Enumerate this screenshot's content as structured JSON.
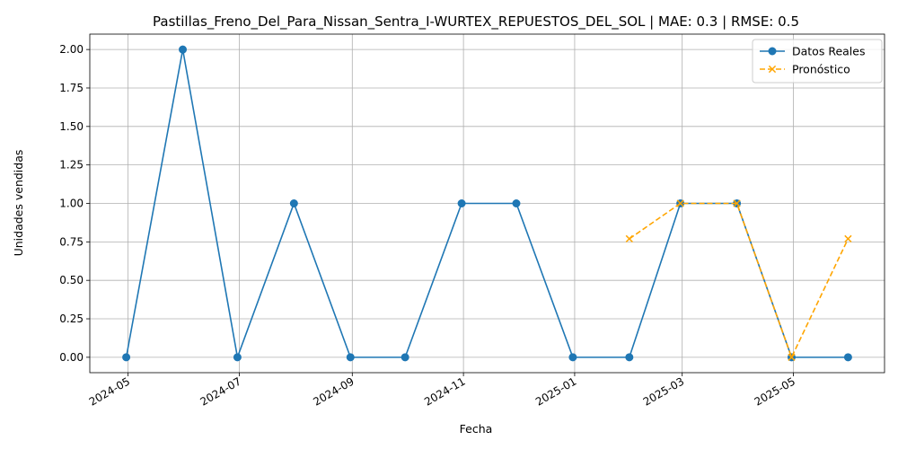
{
  "chart_data": {
    "type": "line",
    "title": "Pastillas_Freno_Del_Para_Nissan_Sentra_I-WURTEX_REPUESTOS_DEL_SOL | MAE: 0.3 | RMSE: 0.5",
    "xlabel": "Fecha",
    "ylabel": "Unidades vendidas",
    "grid": true,
    "legend_position": "top-right",
    "x_range": [
      "2024-04-10",
      "2025-06-20"
    ],
    "ylim": [
      -0.1,
      2.1
    ],
    "x_ticks": [
      "2024-05-01",
      "2024-07-01",
      "2024-09-01",
      "2024-11-01",
      "2025-01-01",
      "2025-03-01",
      "2025-05-01"
    ],
    "x_tick_labels": [
      "2024-05",
      "2024-07",
      "2024-09",
      "2024-11",
      "2025-01",
      "2025-03",
      "2025-05"
    ],
    "y_ticks": [
      0.0,
      0.25,
      0.5,
      0.75,
      1.0,
      1.25,
      1.5,
      1.75,
      2.0
    ],
    "y_tick_labels": [
      "0.00",
      "0.25",
      "0.50",
      "0.75",
      "1.00",
      "1.25",
      "1.50",
      "1.75",
      "2.00"
    ],
    "series": [
      {
        "name": "Datos Reales",
        "color": "#1f77b4",
        "style": "solid",
        "marker": "circle",
        "x": [
          "2024-04-30",
          "2024-05-31",
          "2024-06-30",
          "2024-07-31",
          "2024-08-31",
          "2024-09-30",
          "2024-10-31",
          "2024-11-30",
          "2024-12-31",
          "2025-01-31",
          "2025-02-28",
          "2025-03-31",
          "2025-04-30",
          "2025-05-31"
        ],
        "values": [
          0,
          2,
          0,
          1,
          0,
          0,
          1,
          1,
          0,
          0,
          1,
          1,
          0,
          0
        ]
      },
      {
        "name": "Pronóstico",
        "color": "#ffa500",
        "style": "dashed",
        "marker": "x",
        "x": [
          "2025-01-31",
          "2025-02-28",
          "2025-03-31",
          "2025-04-30",
          "2025-05-31"
        ],
        "values": [
          0.77,
          1.0,
          1.0,
          0.0,
          0.77
        ]
      }
    ]
  }
}
